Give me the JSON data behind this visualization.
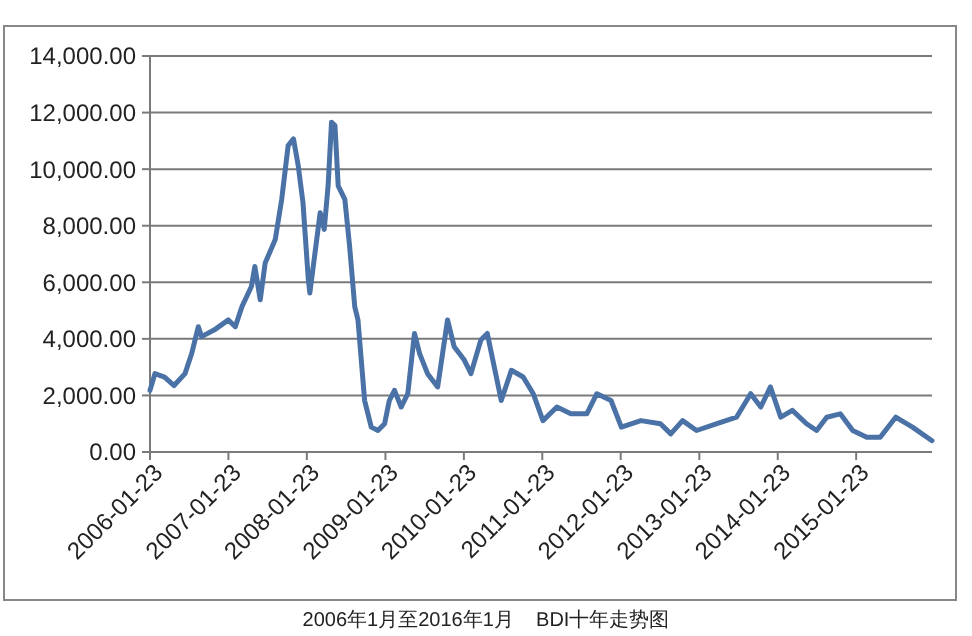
{
  "chart_data": {
    "type": "line",
    "title": "2006年1月至2016年1月    BDI十年走势图",
    "xlim": [
      "2006-01-23",
      "2016-01-11"
    ],
    "xticks": [
      "2006-01-23",
      "2007-01-23",
      "2008-01-23",
      "2009-01-23",
      "2010-01-23",
      "2011-01-23",
      "2012-01-23",
      "2013-01-23",
      "2014-01-23",
      "2015-01-23"
    ],
    "ylim": [
      0,
      14000
    ],
    "yticks": [
      {
        "value": 0,
        "label": "0.00"
      },
      {
        "value": 2000,
        "label": "2,000.00"
      },
      {
        "value": 4000,
        "label": "4,000.00"
      },
      {
        "value": 6000,
        "label": "6,000.00"
      },
      {
        "value": 8000,
        "label": "8,000.00"
      },
      {
        "value": 10000,
        "label": "10,000.00"
      },
      {
        "value": 12000,
        "label": "12,000.00"
      },
      {
        "value": 14000,
        "label": "14,000.00"
      }
    ],
    "grid": "y",
    "marker": "none",
    "line_style": "solid",
    "series": [
      {
        "color": "#4a72a6",
        "x": [
          "2006-01-23",
          "2006-02-15",
          "2006-04-01",
          "2006-05-15",
          "2006-07-05",
          "2006-08-05",
          "2006-09-05",
          "2006-09-20",
          "2006-11-17",
          "2007-01-23",
          "2007-02-24",
          "2007-03-27",
          "2007-05-10",
          "2007-05-26",
          "2007-06-20",
          "2007-07-13",
          "2007-08-29",
          "2007-09-28",
          "2007-10-28",
          "2007-11-22",
          "2007-12-14",
          "2008-01-05",
          "2008-01-30",
          "2008-02-06",
          "2008-03-01",
          "2008-03-25",
          "2008-04-13",
          "2008-05-01",
          "2008-05-17",
          "2008-06-02",
          "2008-06-17",
          "2008-07-18",
          "2008-08-09",
          "2008-09-02",
          "2008-09-17",
          "2008-10-18",
          "2008-11-18",
          "2008-12-19",
          "2009-01-19",
          "2009-02-10",
          "2009-03-06",
          "2009-04-06",
          "2009-05-07",
          "2009-06-07",
          "2009-07-01",
          "2009-08-07",
          "2009-09-23",
          "2009-11-08",
          "2009-12-09",
          "2010-01-25",
          "2010-02-25",
          "2010-04-12",
          "2010-05-12",
          "2010-07-16",
          "2010-09-01",
          "2010-10-26",
          "2010-12-12",
          "2011-01-26",
          "2011-04-01",
          "2011-06-05",
          "2011-08-18",
          "2011-10-04",
          "2011-12-09",
          "2012-01-26",
          "2012-04-26",
          "2012-07-26",
          "2012-09-12",
          "2012-11-06",
          "2013-01-10",
          "2013-04-15",
          "2013-07-15",
          "2013-09-19",
          "2013-11-05",
          "2013-12-20",
          "2014-02-06",
          "2014-04-01",
          "2014-06-06",
          "2014-07-23",
          "2014-09-08",
          "2014-11-10",
          "2015-01-07",
          "2015-03-13",
          "2015-05-15",
          "2015-07-26",
          "2015-10-12",
          "2016-01-11"
        ],
        "values": [
          2180,
          2770,
          2650,
          2350,
          2770,
          3480,
          4430,
          4080,
          4310,
          4670,
          4430,
          5140,
          5850,
          6560,
          5380,
          6680,
          7510,
          8930,
          10830,
          11070,
          10120,
          8820,
          6090,
          5620,
          7040,
          8460,
          7870,
          9410,
          11660,
          11540,
          9410,
          8930,
          7280,
          5140,
          4670,
          1820,
          880,
          760,
          1000,
          1820,
          2180,
          1590,
          2060,
          4190,
          3480,
          2770,
          2300,
          4670,
          3720,
          3250,
          2770,
          3960,
          4190,
          1820,
          2890,
          2650,
          2060,
          1110,
          1590,
          1350,
          1350,
          2060,
          1820,
          880,
          1110,
          1000,
          640,
          1110,
          760,
          1000,
          1230,
          2060,
          1590,
          2300,
          1230,
          1470,
          1000,
          760,
          1230,
          1350,
          760,
          520,
          520,
          1230,
          880,
          400
        ]
      }
    ]
  }
}
